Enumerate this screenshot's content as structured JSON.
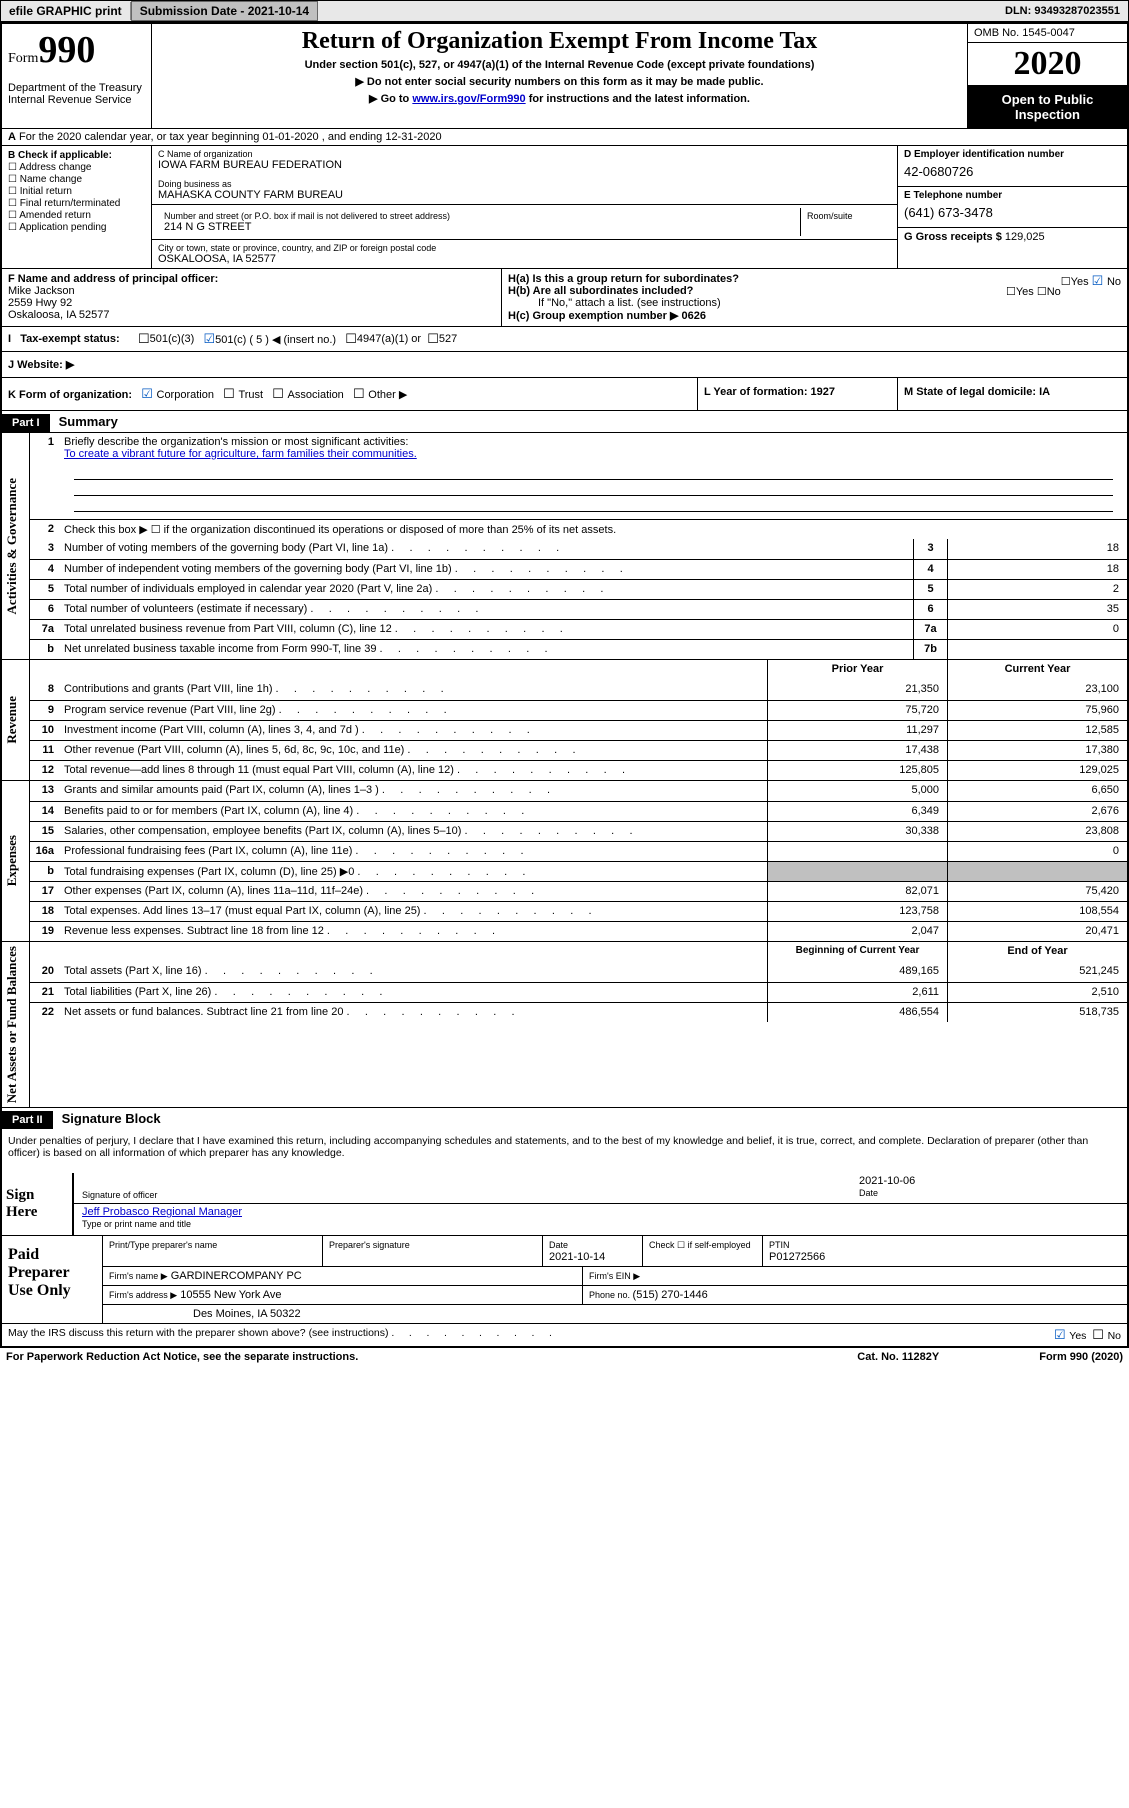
{
  "topbar": {
    "efile": "efile GRAPHIC print",
    "submission_label": "Submission Date - 2021-10-14",
    "dln": "DLN: 93493287023551"
  },
  "header": {
    "form_word": "Form",
    "form_num": "990",
    "dept1": "Department of the Treasury",
    "dept2": "Internal Revenue Service",
    "title": "Return of Organization Exempt From Income Tax",
    "sub": "Under section 501(c), 527, or 4947(a)(1) of the Internal Revenue Code (except private foundations)",
    "note1": "Do not enter social security numbers on this form as it may be made public.",
    "note2_pre": "Go to ",
    "note2_link": "www.irs.gov/Form990",
    "note2_post": " for instructions and the latest information.",
    "omb": "OMB No. 1545-0047",
    "year": "2020",
    "open1": "Open to Public",
    "open2": "Inspection"
  },
  "lineA": "For the 2020 calendar year, or tax year beginning 01-01-2020     , and ending 12-31-2020",
  "colB": {
    "hdr": "B Check if applicable:",
    "opts": [
      "Address change",
      "Name change",
      "Initial return",
      "Final return/terminated",
      "Amended return",
      "Application pending"
    ]
  },
  "colC": {
    "name_lbl": "C Name of organization",
    "name": "IOWA FARM BUREAU FEDERATION",
    "dba_lbl": "Doing business as",
    "dba": "MAHASKA COUNTY FARM BUREAU",
    "addr_lbl": "Number and street (or P.O. box if mail is not delivered to street address)",
    "room_lbl": "Room/suite",
    "addr": "214 N G STREET",
    "city_lbl": "City or town, state or province, country, and ZIP or foreign postal code",
    "city": "OSKALOOSA, IA  52577"
  },
  "colD": {
    "ein_lbl": "D Employer identification number",
    "ein": "42-0680726",
    "tel_lbl": "E Telephone number",
    "tel": "(641) 673-3478",
    "gross_lbl": "G Gross receipts $ ",
    "gross": "129,025"
  },
  "fgh": {
    "f_lbl": "F  Name and address of principal officer:",
    "f_name": "Mike Jackson",
    "f_addr1": "2559 Hwy 92",
    "f_addr2": "Oskaloosa, IA  52577",
    "ha": "H(a)  Is this a group return for subordinates?",
    "hb": "H(b)  Are all subordinates included?",
    "hb_note": "If \"No,\" attach a list. (see instructions)",
    "hc": "H(c)  Group exemption number ▶   0626"
  },
  "iline": {
    "lbl": "Tax-exempt status:",
    "o1": "501(c)(3)",
    "o2": "501(c) ( 5 ) ◀ (insert no.)",
    "o3": "4947(a)(1) or",
    "o4": "527"
  },
  "jline": "J   Website: ▶",
  "kline": {
    "k1": "K Form of organization:",
    "k1a": "Corporation",
    "k1b": "Trust",
    "k1c": "Association",
    "k1d": "Other ▶",
    "k2": "L Year of formation: 1927",
    "k3": "M State of legal domicile: IA"
  },
  "part1": {
    "hdr": "Part I",
    "title": "Summary",
    "q1": "Briefly describe the organization's mission or most significant activities:",
    "mission": "To create a vibrant future for agriculture, farm families their communities.",
    "q2": "Check this box ▶ ☐  if the organization discontinued its operations or disposed of more than 25% of its net assets.",
    "rows_gov": [
      {
        "n": "3",
        "t": "Number of voting members of the governing body (Part VI, line 1a)",
        "box": "3",
        "v": "18"
      },
      {
        "n": "4",
        "t": "Number of independent voting members of the governing body (Part VI, line 1b)",
        "box": "4",
        "v": "18"
      },
      {
        "n": "5",
        "t": "Total number of individuals employed in calendar year 2020 (Part V, line 2a)",
        "box": "5",
        "v": "2"
      },
      {
        "n": "6",
        "t": "Total number of volunteers (estimate if necessary)",
        "box": "6",
        "v": "35"
      },
      {
        "n": "7a",
        "t": "Total unrelated business revenue from Part VIII, column (C), line 12",
        "box": "7a",
        "v": "0"
      },
      {
        "n": "b",
        "t": "Net unrelated business taxable income from Form 990-T, line 39",
        "box": "7b",
        "v": ""
      }
    ],
    "prior_hdr": "Prior Year",
    "curr_hdr": "Current Year",
    "rows_rev": [
      {
        "n": "8",
        "t": "Contributions and grants (Part VIII, line 1h)",
        "p": "21,350",
        "c": "23,100"
      },
      {
        "n": "9",
        "t": "Program service revenue (Part VIII, line 2g)",
        "p": "75,720",
        "c": "75,960"
      },
      {
        "n": "10",
        "t": "Investment income (Part VIII, column (A), lines 3, 4, and 7d )",
        "p": "11,297",
        "c": "12,585"
      },
      {
        "n": "11",
        "t": "Other revenue (Part VIII, column (A), lines 5, 6d, 8c, 9c, 10c, and 11e)",
        "p": "17,438",
        "c": "17,380"
      },
      {
        "n": "12",
        "t": "Total revenue—add lines 8 through 11 (must equal Part VIII, column (A), line 12)",
        "p": "125,805",
        "c": "129,025"
      }
    ],
    "rows_exp": [
      {
        "n": "13",
        "t": "Grants and similar amounts paid (Part IX, column (A), lines 1–3 )",
        "p": "5,000",
        "c": "6,650"
      },
      {
        "n": "14",
        "t": "Benefits paid to or for members (Part IX, column (A), line 4)",
        "p": "6,349",
        "c": "2,676"
      },
      {
        "n": "15",
        "t": "Salaries, other compensation, employee benefits (Part IX, column (A), lines 5–10)",
        "p": "30,338",
        "c": "23,808"
      },
      {
        "n": "16a",
        "t": "Professional fundraising fees (Part IX, column (A), line 11e)",
        "p": "",
        "c": "0"
      },
      {
        "n": "b",
        "t": "Total fundraising expenses (Part IX, column (D), line 25) ▶0",
        "p": "GREY",
        "c": "GREY"
      },
      {
        "n": "17",
        "t": "Other expenses (Part IX, column (A), lines 11a–11d, 11f–24e)",
        "p": "82,071",
        "c": "75,420"
      },
      {
        "n": "18",
        "t": "Total expenses. Add lines 13–17 (must equal Part IX, column (A), line 25)",
        "p": "123,758",
        "c": "108,554"
      },
      {
        "n": "19",
        "t": "Revenue less expenses. Subtract line 18 from line 12",
        "p": "2,047",
        "c": "20,471"
      }
    ],
    "beg_hdr": "Beginning of Current Year",
    "end_hdr": "End of Year",
    "rows_net": [
      {
        "n": "20",
        "t": "Total assets (Part X, line 16)",
        "p": "489,165",
        "c": "521,245"
      },
      {
        "n": "21",
        "t": "Total liabilities (Part X, line 26)",
        "p": "2,611",
        "c": "2,510"
      },
      {
        "n": "22",
        "t": "Net assets or fund balances. Subtract line 21 from line 20",
        "p": "486,554",
        "c": "518,735"
      }
    ]
  },
  "part2": {
    "hdr": "Part II",
    "title": "Signature Block",
    "decl": "Under penalties of perjury, I declare that I have examined this return, including accompanying schedules and statements, and to the best of my knowledge and belief, it is true, correct, and complete. Declaration of preparer (other than officer) is based on all information of which preparer has any knowledge.",
    "sign_here": "Sign Here",
    "sig_officer": "Signature of officer",
    "sig_date": "2021-10-06",
    "date_lbl": "Date",
    "officer": "Jeff Probasco  Regional Manager",
    "type_lbl": "Type or print name and title",
    "paid": "Paid Preparer Use Only",
    "p_name_lbl": "Print/Type preparer's name",
    "p_sig_lbl": "Preparer's signature",
    "p_date_lbl": "Date",
    "p_date": "2021-10-14",
    "p_check": "Check ☐ if self-employed",
    "ptin_lbl": "PTIN",
    "ptin": "P01272566",
    "firm_name_lbl": "Firm's name    ▶",
    "firm_name": "GARDINERCOMPANY PC",
    "firm_ein_lbl": "Firm's EIN ▶",
    "firm_addr_lbl": "Firm's address ▶",
    "firm_addr1": "10555 New York Ave",
    "firm_addr2": "Des Moines, IA  50322",
    "firm_phone_lbl": "Phone no. ",
    "firm_phone": "(515) 270-1446",
    "discuss": "May the IRS discuss this return with the preparer shown above? (see instructions)",
    "yes": "Yes",
    "no": "No"
  },
  "footer": {
    "pra": "For Paperwork Reduction Act Notice, see the separate instructions.",
    "cat": "Cat. No. 11282Y",
    "form": "Form 990 (2020)"
  },
  "labels": {
    "gov": "Activities & Governance",
    "rev": "Revenue",
    "exp": "Expenses",
    "net": "Net Assets or Fund Balances"
  }
}
